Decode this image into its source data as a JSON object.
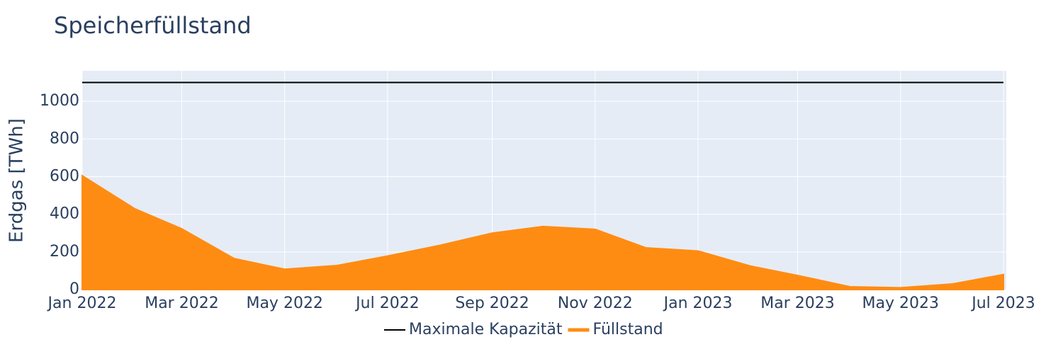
{
  "chart_data": {
    "type": "area",
    "title": "Speicherfüllstand",
    "ylabel": "Erdgas [TWh]",
    "x": [
      "2022-01",
      "2022-02",
      "2022-03",
      "2022-04",
      "2022-05",
      "2022-06",
      "2022-07",
      "2022-08",
      "2022-09",
      "2022-10",
      "2022-11",
      "2022-12",
      "2023-01",
      "2023-02",
      "2023-03",
      "2023-04",
      "2023-05",
      "2023-06",
      "2023-07"
    ],
    "series": [
      {
        "name": "Maximale Kapazität",
        "color": "#000000",
        "kind": "line",
        "values": [
          1100,
          1100,
          1100,
          1100,
          1100,
          1100,
          1100,
          1100,
          1100,
          1100,
          1100,
          1100,
          1100,
          1100,
          1100,
          1100,
          1100,
          1100,
          1100
        ]
      },
      {
        "name": "Füllstand",
        "color": "#ff8c12",
        "kind": "area",
        "values": [
          605,
          430,
          323,
          165,
          108,
          128,
          178,
          235,
          300,
          335,
          320,
          222,
          205,
          125,
          75,
          15,
          10,
          30,
          80
        ]
      }
    ],
    "xlim": [
      "2022-01",
      "2023-07"
    ],
    "xticks": [
      {
        "value": "2022-01",
        "label": "Jan 2022"
      },
      {
        "value": "2022-03",
        "label": "Mar 2022"
      },
      {
        "value": "2022-05",
        "label": "May 2022"
      },
      {
        "value": "2022-07",
        "label": "Jul 2022"
      },
      {
        "value": "2022-09",
        "label": "Sep 2022"
      },
      {
        "value": "2022-11",
        "label": "Nov 2022"
      },
      {
        "value": "2023-01",
        "label": "Jan 2023"
      },
      {
        "value": "2023-03",
        "label": "Mar 2023"
      },
      {
        "value": "2023-05",
        "label": "May 2023"
      },
      {
        "value": "2023-07",
        "label": "Jul 2023"
      }
    ],
    "ylim": [
      0,
      1162
    ],
    "yticks": [
      0,
      200,
      400,
      600,
      800,
      1000
    ],
    "grid": true,
    "legend": "bottom"
  }
}
